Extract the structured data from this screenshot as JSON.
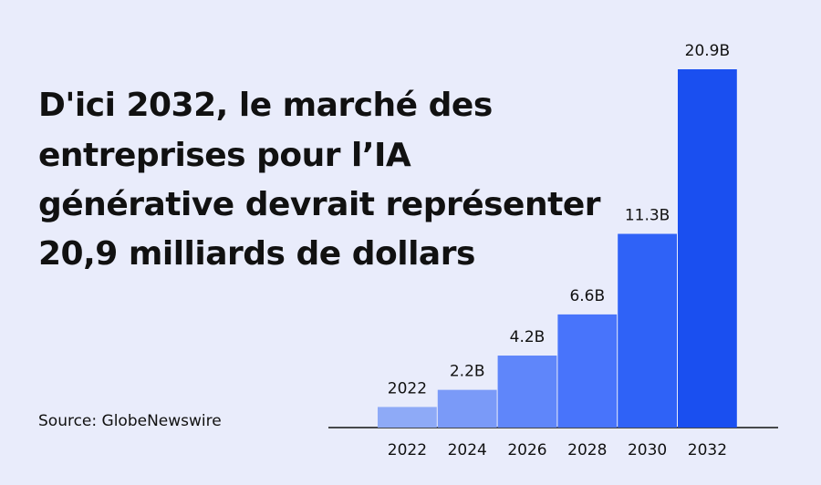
{
  "chart_data": {
    "type": "bar",
    "title": [
      "D'ici 2032, le marché des",
      "entreprises pour l’IA",
      "générative devrait représenter",
      "20,9 milliards de dollars"
    ],
    "source": "Source: GlobeNewswire",
    "categories": [
      "2022",
      "2024",
      "2026",
      "2028",
      "2030",
      "2032"
    ],
    "values": [
      1.2,
      2.2,
      4.2,
      6.6,
      11.3,
      20.9
    ],
    "value_labels": [
      null,
      "2.2B",
      "4.2B",
      "6.6B",
      "11.3B",
      "20.9B"
    ],
    "annotation": "2022",
    "colors": [
      "#8eaaf7",
      "#7a9af8",
      "#5f86fa",
      "#4874fb",
      "#2f62f7",
      "#1a4ff0"
    ]
  }
}
